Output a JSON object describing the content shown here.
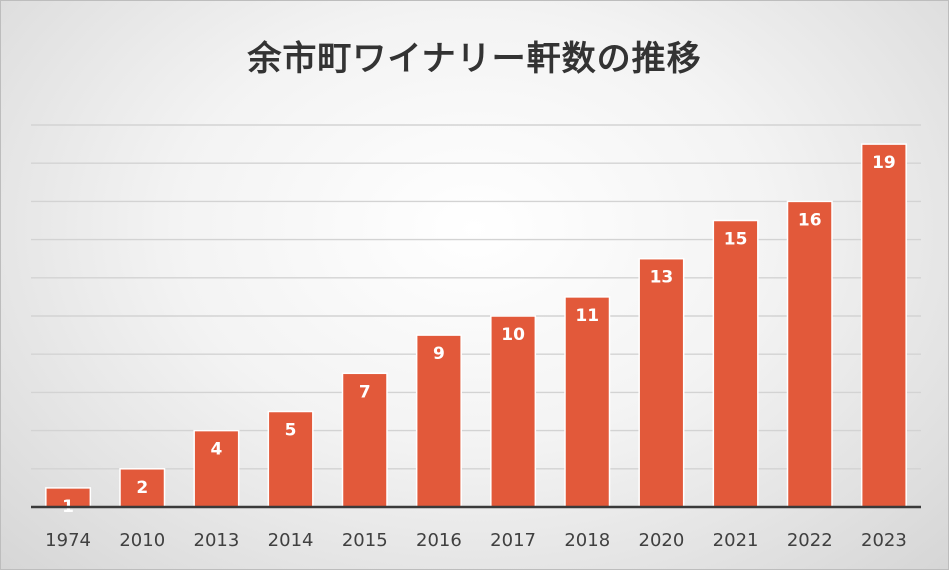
{
  "chart_data": {
    "type": "bar",
    "title": "余市町ワイナリー軒数の推移",
    "categories": [
      "1974",
      "2010",
      "2013",
      "2014",
      "2015",
      "2016",
      "2017",
      "2018",
      "2020",
      "2021",
      "2022",
      "2023"
    ],
    "values": [
      1,
      2,
      4,
      5,
      7,
      9,
      10,
      11,
      13,
      15,
      16,
      19
    ],
    "ylim": [
      0,
      20
    ],
    "gridline_step": 2,
    "grid": true,
    "legend": "none",
    "colors": {
      "bar": "#e2593a",
      "data_label": "#ffffff",
      "axis": "#3a3a3a",
      "grid": "#d3d3d3"
    }
  }
}
